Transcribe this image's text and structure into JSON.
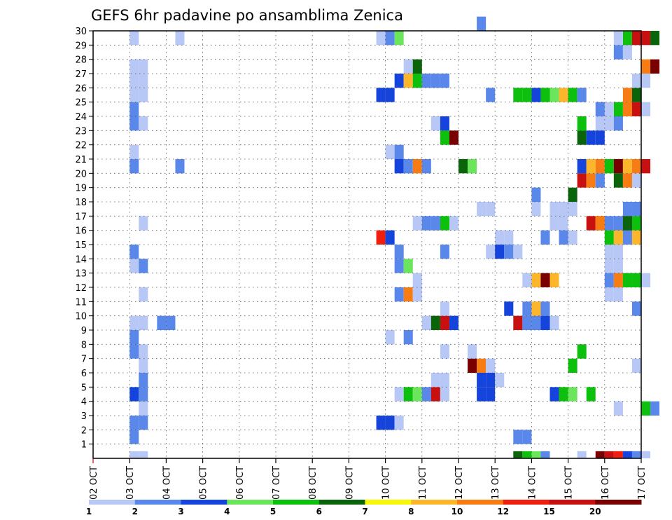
{
  "chart_data": {
    "type": "heatmap",
    "title": "GEFS 6hr padavine po ansamblima Zenica",
    "xlabel": "",
    "ylabel": "",
    "x_tick_labels": [
      "02 OCT",
      "03 OCT",
      "04 OCT",
      "05 OCT",
      "06 OCT",
      "07 OCT",
      "08 OCT",
      "09 OCT",
      "10 OCT",
      "11 OCT",
      "12 OCT",
      "13 OCT",
      "14 OCT",
      "15 OCT",
      "16 OCT",
      "17 OCT"
    ],
    "y_tick_labels": [
      "1",
      "2",
      "3",
      "4",
      "5",
      "6",
      "7",
      "8",
      "9",
      "10",
      "11",
      "12",
      "13",
      "14",
      "15",
      "16",
      "17",
      "18",
      "19",
      "20",
      "21",
      "22",
      "23",
      "24",
      "25",
      "26",
      "27",
      "28",
      "29",
      "30"
    ],
    "x_range_days": [
      0,
      15
    ],
    "y_range": [
      0,
      30
    ],
    "grid": true,
    "colorbar": {
      "labels": [
        "1",
        "2",
        "3",
        "4",
        "5",
        "6",
        "7",
        "8",
        "10",
        "12",
        "15",
        "20"
      ],
      "colors": [
        "#b8c8f6",
        "#5a87ea",
        "#1444dc",
        "#6ae55c",
        "#0dc00d",
        "#0a640a",
        "#f7f708",
        "#fbb62c",
        "#f87c14",
        "#f01e0e",
        "#c81010",
        "#780000"
      ]
    },
    "cells": [
      [
        1.0,
        0,
        1
      ],
      [
        1.25,
        0,
        1
      ],
      [
        1.0,
        1,
        2
      ],
      [
        1.0,
        2,
        2
      ],
      [
        1.25,
        2,
        2
      ],
      [
        1.25,
        3,
        1
      ],
      [
        1.0,
        4,
        3
      ],
      [
        1.25,
        4,
        2
      ],
      [
        1.25,
        5,
        2
      ],
      [
        1.25,
        6,
        1
      ],
      [
        1.25,
        7,
        1
      ],
      [
        1.0,
        7,
        2
      ],
      [
        1.0,
        8,
        2
      ],
      [
        1.0,
        9,
        1
      ],
      [
        1.25,
        9,
        1
      ],
      [
        1.25,
        11,
        1
      ],
      [
        1.0,
        13,
        1
      ],
      [
        1.25,
        13,
        2
      ],
      [
        1.0,
        14,
        2
      ],
      [
        1.25,
        16,
        1
      ],
      [
        1.0,
        20,
        2
      ],
      [
        1.0,
        21,
        1
      ],
      [
        1.0,
        23,
        2
      ],
      [
        1.25,
        23,
        1
      ],
      [
        1.0,
        24,
        2
      ],
      [
        1.0,
        25,
        1
      ],
      [
        1.25,
        25,
        1
      ],
      [
        1.0,
        26,
        1
      ],
      [
        1.25,
        26,
        1
      ],
      [
        1.0,
        27,
        1
      ],
      [
        1.25,
        27,
        1
      ],
      [
        1.0,
        29,
        1
      ],
      [
        1.75,
        9,
        2
      ],
      [
        2.0,
        9,
        2
      ],
      [
        2.25,
        20,
        2
      ],
      [
        2.25,
        29,
        1
      ],
      [
        7.75,
        2,
        3
      ],
      [
        8.0,
        2,
        3
      ],
      [
        8.25,
        2,
        1
      ],
      [
        7.75,
        15,
        12
      ],
      [
        8.0,
        15,
        3
      ],
      [
        7.75,
        25,
        3
      ],
      [
        8.0,
        25,
        3
      ],
      [
        7.75,
        29,
        1
      ],
      [
        8.0,
        29,
        2
      ],
      [
        8.25,
        29,
        4
      ],
      [
        8.25,
        4,
        1
      ],
      [
        8.5,
        4,
        5
      ],
      [
        8.75,
        4,
        4
      ],
      [
        9.0,
        4,
        2
      ],
      [
        9.25,
        4,
        15
      ],
      [
        9.5,
        4,
        1
      ],
      [
        9.25,
        5,
        1
      ],
      [
        9.5,
        5,
        1
      ],
      [
        8.0,
        8,
        1
      ],
      [
        8.5,
        8,
        2
      ],
      [
        9.5,
        7,
        1
      ],
      [
        9.0,
        9,
        1
      ],
      [
        9.25,
        9,
        6
      ],
      [
        9.5,
        9,
        15
      ],
      [
        9.75,
        9,
        3
      ],
      [
        9.5,
        10,
        1
      ],
      [
        8.25,
        11,
        2
      ],
      [
        8.5,
        11,
        10
      ],
      [
        8.75,
        11,
        1
      ],
      [
        8.75,
        12,
        1
      ],
      [
        8.25,
        13,
        2
      ],
      [
        8.5,
        13,
        4
      ],
      [
        8.25,
        14,
        2
      ],
      [
        9.5,
        14,
        2
      ],
      [
        8.75,
        16,
        1
      ],
      [
        9.25,
        16,
        2
      ],
      [
        9.5,
        16,
        5
      ],
      [
        9.75,
        16,
        1
      ],
      [
        9.0,
        16,
        2
      ],
      [
        8.25,
        20,
        3
      ],
      [
        8.5,
        20,
        2
      ],
      [
        8.75,
        20,
        10
      ],
      [
        9.0,
        20,
        2
      ],
      [
        8.0,
        21,
        1
      ],
      [
        8.25,
        21,
        2
      ],
      [
        9.5,
        22,
        5
      ],
      [
        9.75,
        22,
        20
      ],
      [
        9.25,
        23,
        1
      ],
      [
        9.5,
        23,
        3
      ],
      [
        8.25,
        26,
        3
      ],
      [
        8.5,
        26,
        8
      ],
      [
        8.75,
        26,
        5
      ],
      [
        9.0,
        26,
        2
      ],
      [
        9.25,
        26,
        2
      ],
      [
        9.5,
        26,
        2
      ],
      [
        8.5,
        27,
        1
      ],
      [
        8.75,
        27,
        6
      ],
      [
        10.25,
        6,
        20
      ],
      [
        10.5,
        6,
        10
      ],
      [
        10.75,
        6,
        1
      ],
      [
        10.25,
        7,
        1
      ],
      [
        10.5,
        4,
        3
      ],
      [
        10.75,
        4,
        3
      ],
      [
        10.5,
        5,
        3
      ],
      [
        10.75,
        5,
        3
      ],
      [
        11.0,
        5,
        1
      ],
      [
        10.0,
        20,
        6
      ],
      [
        10.25,
        20,
        4
      ],
      [
        10.75,
        14,
        1
      ],
      [
        11.0,
        14,
        3
      ],
      [
        11.25,
        14,
        2
      ],
      [
        11.5,
        14,
        1
      ],
      [
        11.0,
        15,
        1
      ],
      [
        11.25,
        15,
        1
      ],
      [
        11.5,
        1,
        2
      ],
      [
        11.75,
        1,
        2
      ],
      [
        11.5,
        0,
        6
      ],
      [
        11.75,
        0,
        5
      ],
      [
        12.0,
        0,
        4
      ],
      [
        12.25,
        0,
        2
      ],
      [
        12.5,
        4,
        3
      ],
      [
        12.75,
        4,
        5
      ],
      [
        13.0,
        4,
        4
      ],
      [
        13.5,
        4,
        5
      ],
      [
        11.5,
        9,
        15
      ],
      [
        11.75,
        9,
        2
      ],
      [
        12.0,
        9,
        2
      ],
      [
        12.25,
        9,
        3
      ],
      [
        12.5,
        9,
        1
      ],
      [
        11.25,
        10,
        3
      ],
      [
        11.75,
        10,
        2
      ],
      [
        12.0,
        10,
        8
      ],
      [
        12.25,
        10,
        2
      ],
      [
        11.75,
        12,
        1
      ],
      [
        12.0,
        12,
        8
      ],
      [
        12.25,
        12,
        20
      ],
      [
        12.5,
        12,
        8
      ],
      [
        10.5,
        17,
        1
      ],
      [
        10.75,
        17,
        1
      ],
      [
        12.0,
        18,
        2
      ],
      [
        12.0,
        17,
        1
      ],
      [
        11.5,
        25,
        5
      ],
      [
        11.75,
        25,
        5
      ],
      [
        12.0,
        25,
        3
      ],
      [
        12.25,
        25,
        5
      ],
      [
        12.5,
        25,
        4
      ],
      [
        12.75,
        25,
        8
      ],
      [
        13.0,
        25,
        5
      ],
      [
        13.25,
        25,
        2
      ],
      [
        10.75,
        25,
        2
      ],
      [
        10.5,
        30,
        2
      ],
      [
        12.25,
        15,
        2
      ],
      [
        12.5,
        16,
        1
      ],
      [
        12.75,
        16,
        1
      ],
      [
        12.75,
        17,
        1
      ],
      [
        13.0,
        17,
        1
      ],
      [
        12.5,
        17,
        1
      ],
      [
        13.0,
        15,
        1
      ],
      [
        12.75,
        15,
        2
      ],
      [
        13.0,
        18,
        6
      ],
      [
        13.25,
        19,
        15
      ],
      [
        13.5,
        19,
        10
      ],
      [
        13.75,
        19,
        2
      ],
      [
        14.0,
        15,
        5
      ],
      [
        14.25,
        15,
        8
      ],
      [
        14.5,
        15,
        2
      ],
      [
        14.75,
        15,
        8
      ],
      [
        13.5,
        16,
        15
      ],
      [
        13.75,
        16,
        10
      ],
      [
        14.0,
        16,
        2
      ],
      [
        14.25,
        16,
        2
      ],
      [
        14.5,
        16,
        6
      ],
      [
        14.75,
        16,
        5
      ],
      [
        14.0,
        13,
        1
      ],
      [
        14.25,
        13,
        1
      ],
      [
        14.0,
        14,
        1
      ],
      [
        14.25,
        14,
        1
      ],
      [
        13.75,
        16,
        10
      ],
      [
        13.25,
        22,
        6
      ],
      [
        13.5,
        22,
        3
      ],
      [
        13.75,
        23,
        1
      ],
      [
        14.0,
        23,
        1
      ],
      [
        14.25,
        23,
        2
      ],
      [
        13.25,
        23,
        5
      ],
      [
        13.75,
        22,
        3
      ],
      [
        13.25,
        20,
        3
      ],
      [
        13.5,
        20,
        8
      ],
      [
        13.75,
        20,
        10
      ],
      [
        14.0,
        20,
        5
      ],
      [
        14.25,
        20,
        20
      ],
      [
        14.5,
        20,
        8
      ],
      [
        14.75,
        20,
        10
      ],
      [
        15.0,
        20,
        15
      ],
      [
        14.25,
        19,
        6
      ],
      [
        14.5,
        19,
        10
      ],
      [
        14.75,
        19,
        1
      ],
      [
        13.25,
        7,
        5
      ],
      [
        13.0,
        6,
        5
      ],
      [
        14.0,
        11,
        1
      ],
      [
        14.25,
        11,
        1
      ],
      [
        14.75,
        10,
        2
      ],
      [
        14.5,
        17,
        2
      ],
      [
        14.75,
        17,
        2
      ],
      [
        14.5,
        16,
        6
      ],
      [
        14.0,
        12,
        2
      ],
      [
        14.25,
        12,
        10
      ],
      [
        14.5,
        12,
        5
      ],
      [
        14.75,
        12,
        5
      ],
      [
        15.0,
        12,
        1
      ],
      [
        14.25,
        3,
        1
      ],
      [
        15.0,
        3,
        5
      ],
      [
        15.25,
        3,
        2
      ],
      [
        14.75,
        6,
        1
      ],
      [
        14.25,
        24,
        5
      ],
      [
        14.5,
        24,
        10
      ],
      [
        14.75,
        24,
        15
      ],
      [
        15.0,
        24,
        1
      ],
      [
        14.0,
        24,
        1
      ],
      [
        13.75,
        24,
        2
      ],
      [
        14.5,
        25,
        10
      ],
      [
        14.75,
        25,
        6
      ],
      [
        14.75,
        26,
        1
      ],
      [
        15.0,
        26,
        1
      ],
      [
        15.0,
        27,
        10
      ],
      [
        15.25,
        27,
        20
      ],
      [
        14.25,
        28,
        2
      ],
      [
        14.5,
        28,
        1
      ],
      [
        14.5,
        29,
        5
      ],
      [
        14.75,
        29,
        15
      ],
      [
        15.0,
        29,
        15
      ],
      [
        15.25,
        29,
        6
      ],
      [
        14.25,
        29,
        1
      ],
      [
        13.75,
        0,
        20
      ],
      [
        14.0,
        0,
        15
      ],
      [
        14.25,
        0,
        12
      ],
      [
        14.5,
        0,
        3
      ],
      [
        14.75,
        0,
        2
      ],
      [
        15.0,
        0,
        1
      ],
      [
        13.25,
        0,
        1
      ],
      [
        13.25,
        29,
        0
      ]
    ]
  }
}
